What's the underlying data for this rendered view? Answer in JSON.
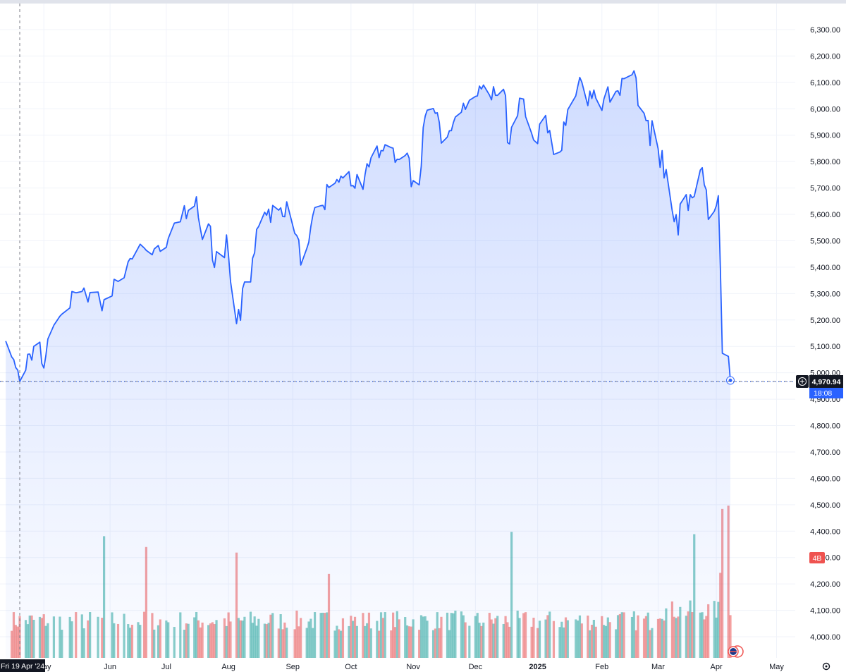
{
  "chart_data": {
    "type": "line",
    "title": "",
    "xlabel": "",
    "ylabel": "",
    "ylim": [
      3950,
      6350
    ],
    "grid": true,
    "legend": "none",
    "y_ticks": [
      "6,300.00",
      "6,200.00",
      "6,100.00",
      "6,000.00",
      "5,900.00",
      "5,800.00",
      "5,700.00",
      "5,600.00",
      "5,500.00",
      "5,400.00",
      "5,300.00",
      "5,200.00",
      "5,100.00",
      "5,000.00",
      "4,900.00",
      "4,800.00",
      "4,700.00",
      "4,600.00",
      "4,500.00",
      "4,400.00",
      "4,300.00",
      "4,200.00",
      "4,100.00",
      "4,000.00"
    ],
    "x_ticks": [
      {
        "label": "May",
        "date": "2024-05-01"
      },
      {
        "label": "Jun",
        "date": "2024-06-03"
      },
      {
        "label": "Jul",
        "date": "2024-07-01"
      },
      {
        "label": "Aug",
        "date": "2024-08-01"
      },
      {
        "label": "Sep",
        "date": "2024-09-02"
      },
      {
        "label": "Oct",
        "date": "2024-10-01"
      },
      {
        "label": "Nov",
        "date": "2024-11-01"
      },
      {
        "label": "Dec",
        "date": "2024-12-02"
      },
      {
        "label": "2025",
        "date": "2025-01-02",
        "bold": true
      },
      {
        "label": "Feb",
        "date": "2025-02-03"
      },
      {
        "label": "Mar",
        "date": "2025-03-03"
      },
      {
        "label": "Apr",
        "date": "2025-04-01"
      },
      {
        "label": "May",
        "date": "2025-05-01"
      }
    ],
    "series": [
      {
        "color": "#2962ff",
        "points": [
          [
            "2024-04-12",
            5120
          ],
          [
            "2024-04-15",
            5060
          ],
          [
            "2024-04-16",
            5050
          ],
          [
            "2024-04-17",
            5020
          ],
          [
            "2024-04-18",
            5010
          ],
          [
            "2024-04-19",
            4967
          ],
          [
            "2024-04-22",
            5010
          ],
          [
            "2024-04-23",
            5070
          ],
          [
            "2024-04-24",
            5071
          ],
          [
            "2024-04-25",
            5048
          ],
          [
            "2024-04-26",
            5100
          ],
          [
            "2024-04-29",
            5116
          ],
          [
            "2024-04-30",
            5035
          ],
          [
            "2024-05-01",
            5018
          ],
          [
            "2024-05-02",
            5064
          ],
          [
            "2024-05-03",
            5128
          ],
          [
            "2024-05-06",
            5180
          ],
          [
            "2024-05-09",
            5214
          ],
          [
            "2024-05-10",
            5222
          ],
          [
            "2024-05-14",
            5246
          ],
          [
            "2024-05-15",
            5308
          ],
          [
            "2024-05-17",
            5303
          ],
          [
            "2024-05-20",
            5308
          ],
          [
            "2024-05-21",
            5321
          ],
          [
            "2024-05-23",
            5268
          ],
          [
            "2024-05-24",
            5304
          ],
          [
            "2024-05-28",
            5306
          ],
          [
            "2024-05-30",
            5235
          ],
          [
            "2024-05-31",
            5277
          ],
          [
            "2024-06-04",
            5291
          ],
          [
            "2024-06-05",
            5354
          ],
          [
            "2024-06-07",
            5346
          ],
          [
            "2024-06-10",
            5360
          ],
          [
            "2024-06-12",
            5421
          ],
          [
            "2024-06-13",
            5433
          ],
          [
            "2024-06-14",
            5431
          ],
          [
            "2024-06-17",
            5473
          ],
          [
            "2024-06-18",
            5487
          ],
          [
            "2024-06-20",
            5473
          ],
          [
            "2024-06-21",
            5464
          ],
          [
            "2024-06-24",
            5447
          ],
          [
            "2024-06-25",
            5469
          ],
          [
            "2024-06-27",
            5482
          ],
          [
            "2024-06-28",
            5460
          ],
          [
            "2024-07-01",
            5475
          ],
          [
            "2024-07-02",
            5509
          ],
          [
            "2024-07-05",
            5567
          ],
          [
            "2024-07-08",
            5572
          ],
          [
            "2024-07-10",
            5633
          ],
          [
            "2024-07-11",
            5584
          ],
          [
            "2024-07-12",
            5615
          ],
          [
            "2024-07-15",
            5631
          ],
          [
            "2024-07-16",
            5667
          ],
          [
            "2024-07-17",
            5588
          ],
          [
            "2024-07-18",
            5544
          ],
          [
            "2024-07-19",
            5505
          ],
          [
            "2024-07-22",
            5564
          ],
          [
            "2024-07-23",
            5555
          ],
          [
            "2024-07-24",
            5427
          ],
          [
            "2024-07-25",
            5399
          ],
          [
            "2024-07-26",
            5459
          ],
          [
            "2024-07-30",
            5436
          ],
          [
            "2024-07-31",
            5522
          ],
          [
            "2024-08-01",
            5446
          ],
          [
            "2024-08-02",
            5346
          ],
          [
            "2024-08-05",
            5186
          ],
          [
            "2024-08-06",
            5240
          ],
          [
            "2024-08-07",
            5199
          ],
          [
            "2024-08-08",
            5319
          ],
          [
            "2024-08-09",
            5344
          ],
          [
            "2024-08-12",
            5344
          ],
          [
            "2024-08-13",
            5434
          ],
          [
            "2024-08-14",
            5455
          ],
          [
            "2024-08-15",
            5543
          ],
          [
            "2024-08-16",
            5554
          ],
          [
            "2024-08-19",
            5608
          ],
          [
            "2024-08-20",
            5597
          ],
          [
            "2024-08-21",
            5620
          ],
          [
            "2024-08-22",
            5570
          ],
          [
            "2024-08-23",
            5634
          ],
          [
            "2024-08-26",
            5616
          ],
          [
            "2024-08-27",
            5625
          ],
          [
            "2024-08-28",
            5592
          ],
          [
            "2024-08-29",
            5591
          ],
          [
            "2024-08-30",
            5648
          ],
          [
            "2024-09-03",
            5528
          ],
          [
            "2024-09-04",
            5520
          ],
          [
            "2024-09-05",
            5503
          ],
          [
            "2024-09-06",
            5408
          ],
          [
            "2024-09-09",
            5471
          ],
          [
            "2024-09-10",
            5495
          ],
          [
            "2024-09-11",
            5554
          ],
          [
            "2024-09-12",
            5596
          ],
          [
            "2024-09-13",
            5626
          ],
          [
            "2024-09-16",
            5633
          ],
          [
            "2024-09-17",
            5634
          ],
          [
            "2024-09-18",
            5618
          ],
          [
            "2024-09-19",
            5713
          ],
          [
            "2024-09-20",
            5702
          ],
          [
            "2024-09-23",
            5718
          ],
          [
            "2024-09-24",
            5732
          ],
          [
            "2024-09-25",
            5722
          ],
          [
            "2024-09-26",
            5745
          ],
          [
            "2024-09-27",
            5738
          ],
          [
            "2024-09-30",
            5762
          ],
          [
            "2024-10-01",
            5708
          ],
          [
            "2024-10-02",
            5709
          ],
          [
            "2024-10-03",
            5699
          ],
          [
            "2024-10-04",
            5751
          ],
          [
            "2024-10-07",
            5695
          ],
          [
            "2024-10-08",
            5751
          ],
          [
            "2024-10-09",
            5792
          ],
          [
            "2024-10-10",
            5780
          ],
          [
            "2024-10-11",
            5815
          ],
          [
            "2024-10-14",
            5859
          ],
          [
            "2024-10-15",
            5815
          ],
          [
            "2024-10-16",
            5842
          ],
          [
            "2024-10-17",
            5841
          ],
          [
            "2024-10-18",
            5864
          ],
          [
            "2024-10-21",
            5853
          ],
          [
            "2024-10-22",
            5851
          ],
          [
            "2024-10-23",
            5797
          ],
          [
            "2024-10-24",
            5809
          ],
          [
            "2024-10-25",
            5808
          ],
          [
            "2024-10-28",
            5823
          ],
          [
            "2024-10-29",
            5832
          ],
          [
            "2024-10-30",
            5813
          ],
          [
            "2024-10-31",
            5705
          ],
          [
            "2024-11-01",
            5728
          ],
          [
            "2024-11-04",
            5712
          ],
          [
            "2024-11-05",
            5782
          ],
          [
            "2024-11-06",
            5929
          ],
          [
            "2024-11-07",
            5973
          ],
          [
            "2024-11-08",
            5995
          ],
          [
            "2024-11-11",
            6001
          ],
          [
            "2024-11-12",
            5983
          ],
          [
            "2024-11-13",
            5985
          ],
          [
            "2024-11-14",
            5949
          ],
          [
            "2024-11-15",
            5870
          ],
          [
            "2024-11-18",
            5893
          ],
          [
            "2024-11-19",
            5917
          ],
          [
            "2024-11-20",
            5917
          ],
          [
            "2024-11-21",
            5948
          ],
          [
            "2024-11-22",
            5969
          ],
          [
            "2024-11-25",
            5987
          ],
          [
            "2024-11-26",
            6021
          ],
          [
            "2024-11-27",
            5998
          ],
          [
            "2024-11-29",
            6032
          ],
          [
            "2024-12-02",
            6047
          ],
          [
            "2024-12-03",
            6049
          ],
          [
            "2024-12-04",
            6086
          ],
          [
            "2024-12-05",
            6075
          ],
          [
            "2024-12-06",
            6090
          ],
          [
            "2024-12-09",
            6052
          ],
          [
            "2024-12-10",
            6034
          ],
          [
            "2024-12-11",
            6084
          ],
          [
            "2024-12-12",
            6051
          ],
          [
            "2024-12-13",
            6051
          ],
          [
            "2024-12-16",
            6074
          ],
          [
            "2024-12-17",
            6050
          ],
          [
            "2024-12-18",
            5872
          ],
          [
            "2024-12-19",
            5867
          ],
          [
            "2024-12-20",
            5930
          ],
          [
            "2024-12-23",
            5974
          ],
          [
            "2024-12-24",
            6040
          ],
          [
            "2024-12-26",
            6037
          ],
          [
            "2024-12-27",
            5970
          ],
          [
            "2024-12-30",
            5907
          ],
          [
            "2024-12-31",
            5882
          ],
          [
            "2025-01-02",
            5868
          ],
          [
            "2025-01-03",
            5942
          ],
          [
            "2025-01-06",
            5975
          ],
          [
            "2025-01-07",
            5909
          ],
          [
            "2025-01-08",
            5918
          ],
          [
            "2025-01-10",
            5827
          ],
          [
            "2025-01-13",
            5836
          ],
          [
            "2025-01-14",
            5843
          ],
          [
            "2025-01-15",
            5950
          ],
          [
            "2025-01-16",
            5937
          ],
          [
            "2025-01-17",
            5997
          ],
          [
            "2025-01-21",
            6049
          ],
          [
            "2025-01-22",
            6086
          ],
          [
            "2025-01-23",
            6119
          ],
          [
            "2025-01-24",
            6101
          ],
          [
            "2025-01-27",
            6012
          ],
          [
            "2025-01-28",
            6067
          ],
          [
            "2025-01-29",
            6039
          ],
          [
            "2025-01-30",
            6071
          ],
          [
            "2025-01-31",
            6040
          ],
          [
            "2025-02-03",
            5994
          ],
          [
            "2025-02-04",
            6037
          ],
          [
            "2025-02-05",
            6061
          ],
          [
            "2025-02-06",
            6083
          ],
          [
            "2025-02-07",
            6025
          ],
          [
            "2025-02-10",
            6066
          ],
          [
            "2025-02-11",
            6068
          ],
          [
            "2025-02-12",
            6051
          ],
          [
            "2025-02-13",
            6115
          ],
          [
            "2025-02-14",
            6114
          ],
          [
            "2025-02-18",
            6129
          ],
          [
            "2025-02-19",
            6144
          ],
          [
            "2025-02-20",
            6117
          ],
          [
            "2025-02-21",
            6013
          ],
          [
            "2025-02-24",
            5983
          ],
          [
            "2025-02-25",
            5955
          ],
          [
            "2025-02-26",
            5956
          ],
          [
            "2025-02-27",
            5861
          ],
          [
            "2025-02-28",
            5955
          ],
          [
            "2025-03-03",
            5849
          ],
          [
            "2025-03-04",
            5778
          ],
          [
            "2025-03-05",
            5842
          ],
          [
            "2025-03-06",
            5738
          ],
          [
            "2025-03-07",
            5770
          ],
          [
            "2025-03-10",
            5615
          ],
          [
            "2025-03-11",
            5572
          ],
          [
            "2025-03-12",
            5599
          ],
          [
            "2025-03-13",
            5522
          ],
          [
            "2025-03-14",
            5639
          ],
          [
            "2025-03-17",
            5675
          ],
          [
            "2025-03-18",
            5615
          ],
          [
            "2025-03-19",
            5675
          ],
          [
            "2025-03-20",
            5663
          ],
          [
            "2025-03-21",
            5668
          ],
          [
            "2025-03-24",
            5768
          ],
          [
            "2025-03-25",
            5777
          ],
          [
            "2025-03-26",
            5712
          ],
          [
            "2025-03-27",
            5693
          ],
          [
            "2025-03-28",
            5581
          ],
          [
            "2025-03-31",
            5612
          ],
          [
            "2025-04-01",
            5633
          ],
          [
            "2025-04-02",
            5671
          ],
          [
            "2025-04-03",
            5397
          ],
          [
            "2025-04-04",
            5074
          ],
          [
            "2025-04-07",
            5062
          ],
          [
            "2025-04-08",
            4971
          ]
        ]
      }
    ],
    "volume_series": {
      "description": "volume histogram at bottom, relative heights 0-1",
      "up_color": "#26a69a",
      "down_color": "#ef5350"
    },
    "crosshair": {
      "date_label": "Fri 19 Apr '24",
      "price_label": "4,970.94",
      "time_label": "18:08",
      "volume_label": "4B"
    }
  }
}
